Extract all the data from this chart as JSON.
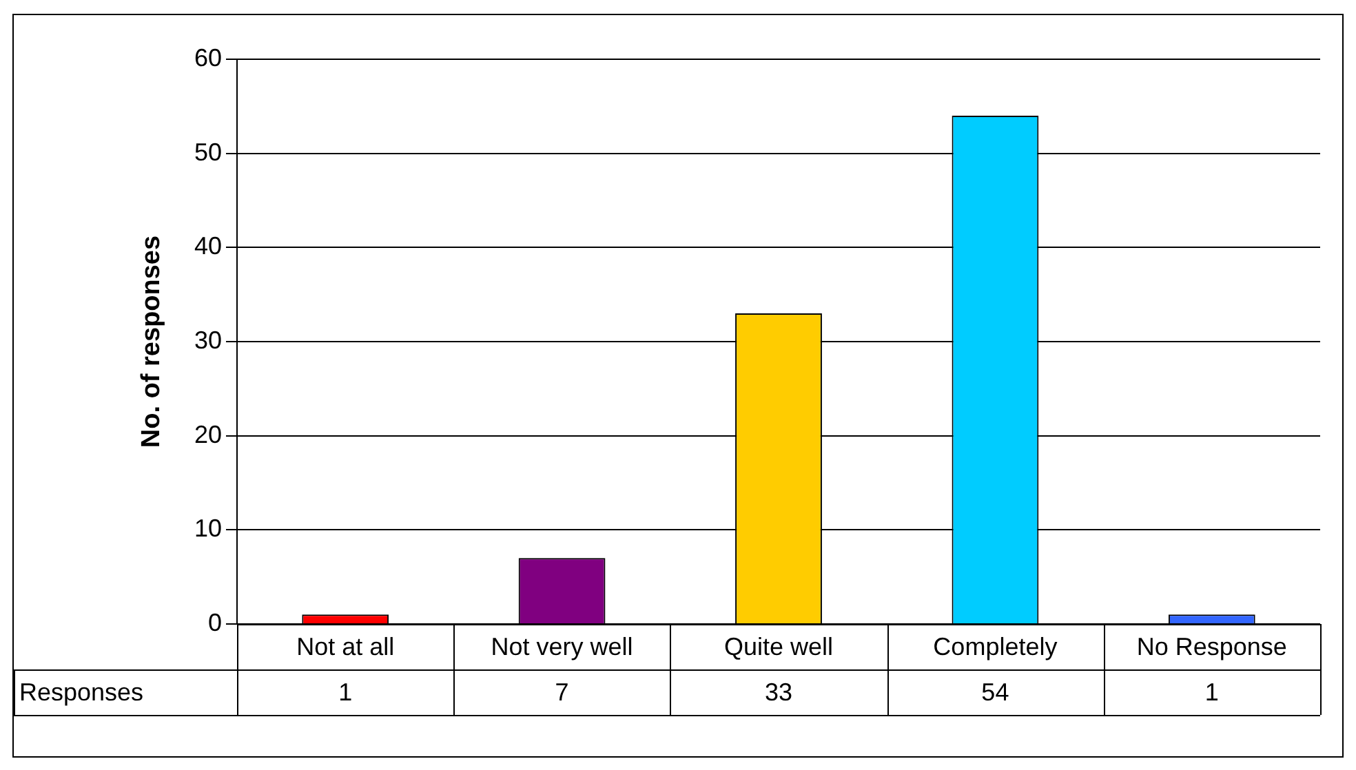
{
  "chart_data": {
    "type": "bar",
    "ylabel": "No. of responses",
    "categories": [
      "Not at all",
      "Not very well",
      "Quite well",
      "Completely",
      "No Response"
    ],
    "series": [
      {
        "name": "Responses",
        "colors": [
          "#ff0000",
          "#800080",
          "#ffcc00",
          "#00ccff",
          "#3366ff"
        ],
        "values": [
          1,
          7,
          33,
          54,
          1
        ]
      }
    ],
    "ylim": [
      0,
      60
    ],
    "yticks": [
      0,
      10,
      20,
      30,
      40,
      50,
      60
    ],
    "grid": "y",
    "data_labels": true
  }
}
